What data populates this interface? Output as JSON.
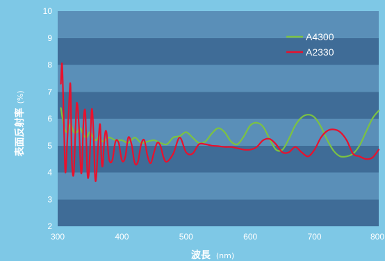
{
  "chart_data": {
    "type": "line",
    "xlabel": "波長",
    "xunit": "(nm)",
    "ylabel": "表面反射率",
    "yunit": "(%)",
    "xlim": [
      300,
      800
    ],
    "ylim": [
      2,
      10
    ],
    "xticks": [
      300,
      400,
      500,
      600,
      700,
      800
    ],
    "yticks": [
      2,
      3,
      4,
      5,
      6,
      7,
      8,
      9,
      10
    ],
    "legend_position": "top-right",
    "colors": {
      "background": "#7ec8e6",
      "band_dark": "#3f6c97",
      "band_light": "#5a8fb8"
    },
    "series": [
      {
        "name": "A4300",
        "color": "#7cc242",
        "x": [
          305,
          310,
          315,
          320,
          325,
          330,
          335,
          340,
          345,
          350,
          355,
          360,
          365,
          370,
          380,
          390,
          400,
          410,
          420,
          430,
          440,
          450,
          460,
          470,
          480,
          490,
          500,
          510,
          520,
          530,
          540,
          550,
          560,
          570,
          580,
          590,
          600,
          610,
          620,
          630,
          640,
          650,
          660,
          670,
          680,
          690,
          700,
          710,
          720,
          730,
          740,
          750,
          760,
          770,
          780,
          790,
          800
        ],
        "y": [
          6.4,
          5.7,
          5.5,
          5.8,
          5.5,
          5.5,
          5.65,
          5.4,
          5.3,
          5.5,
          5.3,
          5.2,
          5.35,
          5.15,
          5.3,
          5.2,
          5.2,
          5.1,
          5.3,
          5.1,
          5.15,
          5.2,
          5.1,
          5.05,
          5.3,
          5.35,
          5.5,
          5.3,
          5.1,
          5.15,
          5.45,
          5.65,
          5.5,
          5.15,
          5.05,
          5.35,
          5.75,
          5.85,
          5.7,
          5.25,
          4.85,
          4.85,
          5.25,
          5.75,
          6.05,
          6.15,
          6.05,
          5.7,
          5.2,
          4.8,
          4.6,
          4.6,
          4.7,
          5.0,
          5.5,
          6.0,
          6.3
        ]
      },
      {
        "name": "A2330",
        "color": "#e8112d",
        "x": [
          305,
          307,
          310,
          312,
          315,
          318,
          320,
          322,
          325,
          328,
          330,
          333,
          336,
          338,
          340,
          343,
          346,
          348,
          350,
          353,
          356,
          358,
          360,
          363,
          366,
          368,
          370,
          373,
          376,
          380,
          385,
          390,
          395,
          400,
          405,
          410,
          415,
          420,
          425,
          430,
          435,
          440,
          445,
          450,
          455,
          460,
          465,
          470,
          480,
          490,
          500,
          510,
          520,
          530,
          540,
          550,
          560,
          570,
          580,
          590,
          600,
          610,
          620,
          630,
          640,
          650,
          660,
          670,
          680,
          690,
          700,
          710,
          720,
          730,
          740,
          750,
          760,
          770,
          780,
          790,
          800
        ],
        "y": [
          7.3,
          8.0,
          5.5,
          4.0,
          5.2,
          6.7,
          7.2,
          4.5,
          3.95,
          5.8,
          6.6,
          5.8,
          4.1,
          4.25,
          5.8,
          6.25,
          4.1,
          3.85,
          4.6,
          6.35,
          5.4,
          3.9,
          3.8,
          5.0,
          5.8,
          4.6,
          4.25,
          5.3,
          5.5,
          4.5,
          4.45,
          5.15,
          5.1,
          4.45,
          4.55,
          5.3,
          5.05,
          4.35,
          4.4,
          5.05,
          5.2,
          4.6,
          4.35,
          4.75,
          5.1,
          5.0,
          4.55,
          4.4,
          4.7,
          5.3,
          4.75,
          4.7,
          5.05,
          5.05,
          5.0,
          4.98,
          4.95,
          4.95,
          4.9,
          4.85,
          4.85,
          4.95,
          5.2,
          5.25,
          5.05,
          4.75,
          4.75,
          4.95,
          4.75,
          4.6,
          4.85,
          5.3,
          5.55,
          5.6,
          5.5,
          5.2,
          4.7,
          4.6,
          4.5,
          4.55,
          4.85
        ]
      }
    ]
  }
}
